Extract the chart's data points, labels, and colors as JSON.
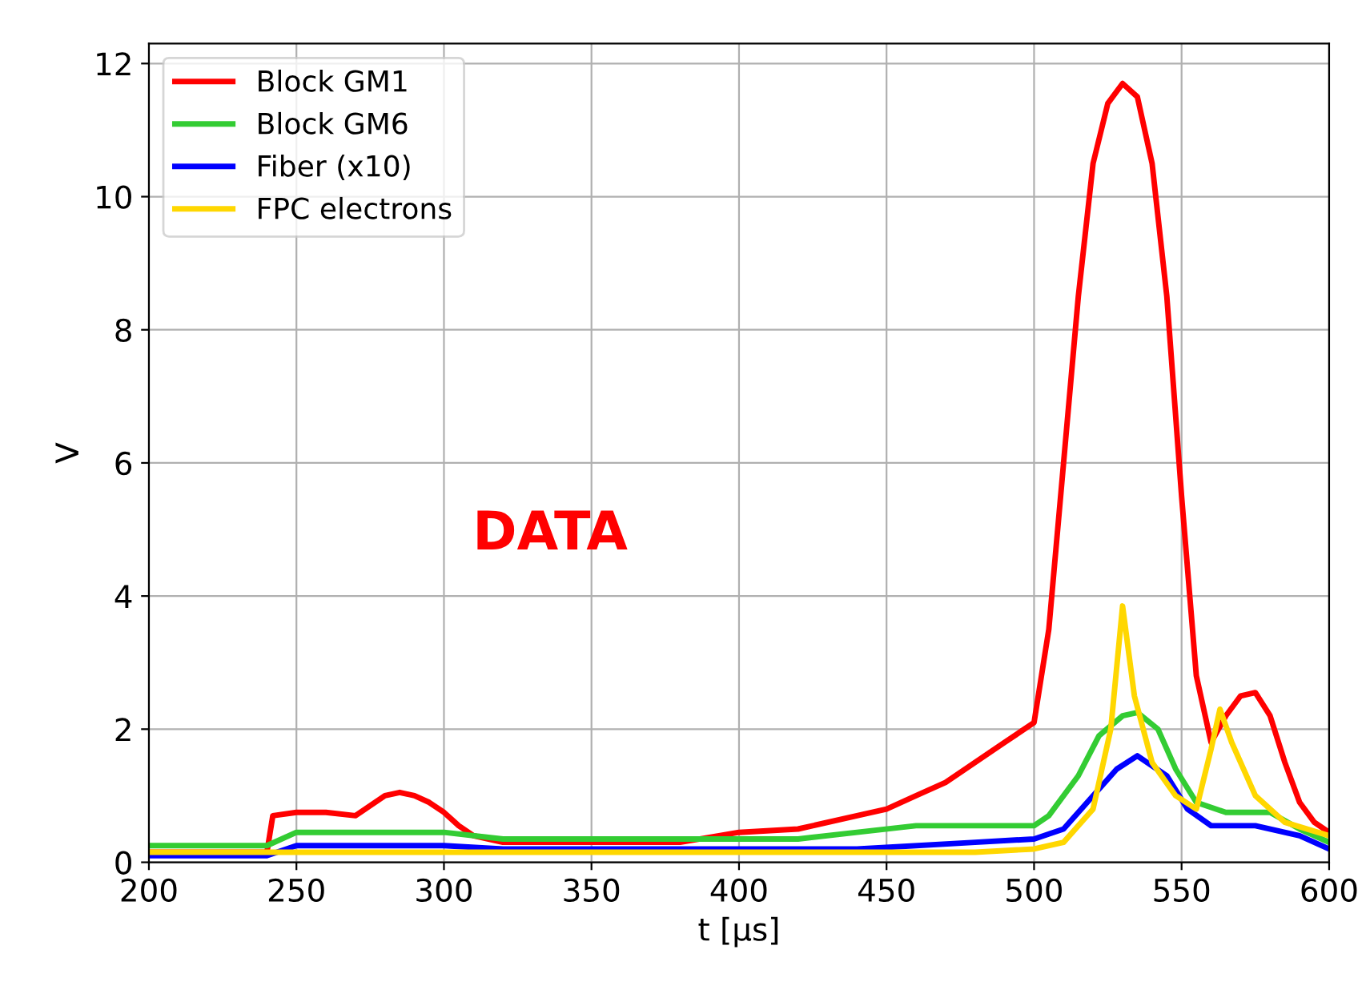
{
  "chart_data": {
    "type": "line",
    "xlabel": "t [µs]",
    "ylabel": "V",
    "xlim": [
      200,
      600
    ],
    "xticks": [
      200,
      250,
      300,
      350,
      400,
      450,
      500,
      550,
      600
    ],
    "ylim": [
      0,
      12.3
    ],
    "yticks": [
      0,
      2,
      4,
      6,
      8,
      10,
      12
    ],
    "grid": true,
    "legend": "top left",
    "annotations": [
      "DATA"
    ],
    "series": [
      {
        "name": "Block GM1",
        "color": "#ff0000",
        "x": [
          200,
          240,
          242,
          250,
          260,
          270,
          275,
          280,
          285,
          290,
          295,
          300,
          305,
          310,
          320,
          350,
          380,
          400,
          420,
          440,
          450,
          460,
          470,
          480,
          490,
          500,
          505,
          510,
          515,
          520,
          525,
          530,
          535,
          540,
          545,
          550,
          555,
          560,
          565,
          570,
          575,
          580,
          585,
          590,
          595,
          600
        ],
        "values": [
          0.15,
          0.15,
          0.7,
          0.75,
          0.75,
          0.7,
          0.85,
          1.0,
          1.05,
          1.0,
          0.9,
          0.75,
          0.55,
          0.4,
          0.3,
          0.3,
          0.3,
          0.45,
          0.5,
          0.7,
          0.8,
          1.0,
          1.2,
          1.5,
          1.8,
          2.1,
          3.5,
          6.0,
          8.5,
          10.5,
          11.4,
          11.7,
          11.5,
          10.5,
          8.5,
          5.5,
          2.8,
          1.8,
          2.2,
          2.5,
          2.55,
          2.2,
          1.5,
          0.9,
          0.6,
          0.45
        ]
      },
      {
        "name": "Block GM6",
        "color": "#33cc33",
        "x": [
          200,
          240,
          250,
          300,
          320,
          420,
          440,
          460,
          500,
          505,
          515,
          522,
          530,
          535,
          542,
          548,
          555,
          565,
          580,
          590,
          600
        ],
        "values": [
          0.25,
          0.25,
          0.45,
          0.45,
          0.35,
          0.35,
          0.45,
          0.55,
          0.55,
          0.7,
          1.3,
          1.9,
          2.2,
          2.25,
          2.0,
          1.4,
          0.9,
          0.75,
          0.75,
          0.5,
          0.3
        ]
      },
      {
        "name": "Fiber (x10)",
        "color": "#0000ff",
        "x": [
          200,
          240,
          250,
          300,
          320,
          440,
          480,
          500,
          510,
          520,
          528,
          535,
          545,
          552,
          560,
          575,
          590,
          600
        ],
        "values": [
          0.1,
          0.1,
          0.25,
          0.25,
          0.2,
          0.2,
          0.3,
          0.35,
          0.5,
          1.0,
          1.4,
          1.6,
          1.3,
          0.8,
          0.55,
          0.55,
          0.4,
          0.2
        ]
      },
      {
        "name": "FPC electrons",
        "color": "#ffd700",
        "x": [
          200,
          480,
          500,
          510,
          520,
          526,
          530,
          534,
          540,
          548,
          555,
          560,
          563,
          567,
          575,
          585,
          600
        ],
        "values": [
          0.15,
          0.15,
          0.2,
          0.3,
          0.8,
          2.0,
          3.85,
          2.5,
          1.5,
          1.0,
          0.8,
          1.7,
          2.3,
          1.8,
          1.0,
          0.6,
          0.4
        ]
      }
    ]
  }
}
